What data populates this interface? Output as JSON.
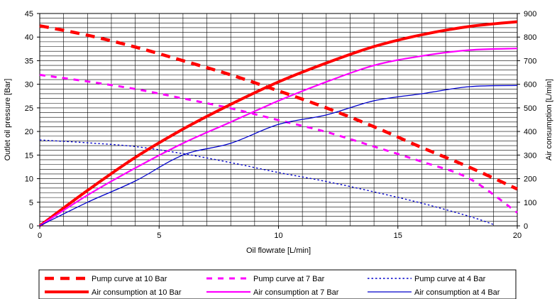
{
  "chart_data": {
    "type": "line",
    "xlabel": "Oil flowrate [L/min]",
    "ylabel_left": "Outlet oil pressure [Bar]",
    "ylabel_right": "Air consumption [L/min]",
    "xlim": [
      0,
      20
    ],
    "ylim_left": [
      0,
      45
    ],
    "ylim_right": [
      0,
      900
    ],
    "x_ticks": [
      0,
      5,
      10,
      15,
      20
    ],
    "y_left_ticks": [
      0,
      5,
      10,
      15,
      20,
      25,
      30,
      35,
      40,
      45
    ],
    "y_right_ticks": [
      0,
      100,
      200,
      300,
      400,
      500,
      600,
      700,
      800,
      900
    ],
    "grid": "horizontal every 1 bar, vertical every 1 L/min",
    "legend_position": "bottom",
    "series": [
      {
        "name": "Pump curve at 10 Bar",
        "axis": "left",
        "color": "#ff0000",
        "style": "dashed-thick",
        "x": [
          0,
          2,
          4,
          6,
          8,
          10,
          12,
          14,
          16,
          18,
          20
        ],
        "y": [
          42.4,
          40.4,
          37.9,
          35,
          32,
          28.6,
          25,
          21,
          16.6,
          12.4,
          7.8
        ]
      },
      {
        "name": "Pump curve at 7 Bar",
        "axis": "left",
        "color": "#ff00ff",
        "style": "dashed",
        "x": [
          0,
          2,
          4,
          6,
          8,
          10,
          12,
          14,
          16,
          18,
          20
        ],
        "y": [
          32,
          30.6,
          29,
          27,
          24.9,
          22.4,
          19.9,
          16.8,
          13.6,
          10,
          2.8
        ]
      },
      {
        "name": "Pump curve at 4 Bar",
        "axis": "left",
        "color": "#0000cc",
        "style": "dotted",
        "x": [
          0,
          2,
          4,
          6,
          8,
          10,
          12,
          14,
          16,
          18,
          19
        ],
        "y": [
          18.2,
          17.6,
          16.8,
          15.3,
          13.4,
          11.3,
          9.4,
          7.2,
          4.8,
          2,
          0.3
        ]
      },
      {
        "name": "Air consumption at 10 Bar",
        "axis": "right",
        "color": "#ff0000",
        "style": "solid-thick",
        "x": [
          0,
          2,
          4,
          6,
          8,
          10,
          12,
          14,
          16,
          18,
          20
        ],
        "y": [
          0,
          150,
          290,
          410,
          515,
          610,
          690,
          760,
          810,
          845,
          865
        ]
      },
      {
        "name": "Air consumption at 7 Bar",
        "axis": "right",
        "color": "#ff00ff",
        "style": "solid",
        "x": [
          0,
          2,
          4,
          6,
          8,
          10,
          12,
          14,
          16,
          18,
          20
        ],
        "y": [
          0,
          130,
          245,
          350,
          440,
          530,
          610,
          680,
          720,
          745,
          752
        ]
      },
      {
        "name": "Air consumption at 4 Bar",
        "axis": "right",
        "color": "#0000cc",
        "style": "solid-thin",
        "x": [
          0,
          2,
          4,
          6,
          8,
          10,
          12,
          14,
          16,
          18,
          20
        ],
        "y": [
          0,
          100,
          190,
          300,
          350,
          430,
          470,
          530,
          560,
          590,
          595
        ]
      }
    ]
  }
}
